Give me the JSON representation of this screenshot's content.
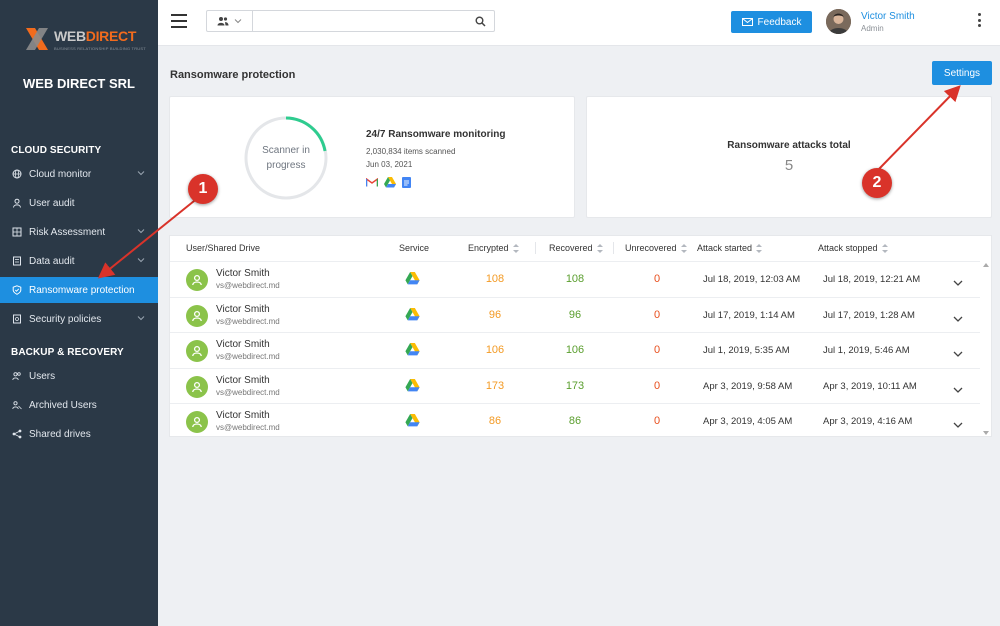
{
  "brand": {
    "logo_text_a": "WEB",
    "logo_text_b": "DIRECT",
    "logo_tagline": "BUSINESS RELATIONSHIP BUILDING TRUST",
    "company": "WEB DIRECT SRL"
  },
  "sidebar": {
    "section_cloud": "CLOUD SECURITY",
    "section_backup": "BACKUP & RECOVERY",
    "items": [
      {
        "label": "Cloud monitor",
        "icon": "globe-icon"
      },
      {
        "label": "User audit",
        "icon": "user-icon"
      },
      {
        "label": "Risk Assessment",
        "icon": "grid-icon"
      },
      {
        "label": "Data audit",
        "icon": "document-icon"
      },
      {
        "label": "Ransomware protection",
        "icon": "shield-icon"
      },
      {
        "label": "Security policies",
        "icon": "policy-icon"
      },
      {
        "label": "Users",
        "icon": "users-icon"
      },
      {
        "label": "Archived Users",
        "icon": "archived-users-icon"
      },
      {
        "label": "Shared drives",
        "icon": "share-icon"
      }
    ]
  },
  "topbar": {
    "search_placeholder": "",
    "feedback_label": "Feedback",
    "user_name": "Victor Smith",
    "user_role": "Admin"
  },
  "page": {
    "title": "Ransomware protection",
    "settings_label": "Settings"
  },
  "scanner": {
    "ring_line1": "Scanner in",
    "ring_line2": "progress",
    "title": "24/7 Ransomware monitoring",
    "items_scanned": "2,030,834 items scanned",
    "date": "Jun 03, 2021",
    "services": [
      "gmail-icon",
      "google-drive-icon",
      "google-docs-icon"
    ]
  },
  "attacks": {
    "title": "Ransomware attacks total",
    "count": "5"
  },
  "table": {
    "headers": {
      "user": "User/Shared Drive",
      "service": "Service",
      "encrypted": "Encrypted",
      "recovered": "Recovered",
      "unrecovered": "Unrecovered",
      "started": "Attack started",
      "stopped": "Attack stopped"
    },
    "rows": [
      {
        "name": "Victor Smith",
        "email": "vs@webdirect.md",
        "encrypted": "108",
        "recovered": "108",
        "unrecovered": "0",
        "started": "Jul 18, 2019, 12:03 AM",
        "stopped": "Jul 18, 2019, 12:21 AM"
      },
      {
        "name": "Victor Smith",
        "email": "vs@webdirect.md",
        "encrypted": "96",
        "recovered": "96",
        "unrecovered": "0",
        "started": "Jul 17, 2019, 1:14 AM",
        "stopped": "Jul 17, 2019, 1:28 AM"
      },
      {
        "name": "Victor Smith",
        "email": "vs@webdirect.md",
        "encrypted": "106",
        "recovered": "106",
        "unrecovered": "0",
        "started": "Jul 1, 2019, 5:35 AM",
        "stopped": "Jul 1, 2019, 5:46 AM"
      },
      {
        "name": "Victor Smith",
        "email": "vs@webdirect.md",
        "encrypted": "173",
        "recovered": "173",
        "unrecovered": "0",
        "started": "Apr 3, 2019, 9:58 AM",
        "stopped": "Apr 3, 2019, 10:11 AM"
      },
      {
        "name": "Victor Smith",
        "email": "vs@webdirect.md",
        "encrypted": "86",
        "recovered": "86",
        "unrecovered": "0",
        "started": "Apr 3, 2019, 4:05 AM",
        "stopped": "Apr 3, 2019, 4:16 AM"
      }
    ]
  },
  "annotations": {
    "badge1": "1",
    "badge2": "2"
  },
  "colors": {
    "sidebar": "#2b3947",
    "accent": "#1e8fe0",
    "encrypted": "#f39a24",
    "recovered": "#5a9e2e",
    "unrecovered": "#e84e1c",
    "annotation": "#d9332a"
  }
}
